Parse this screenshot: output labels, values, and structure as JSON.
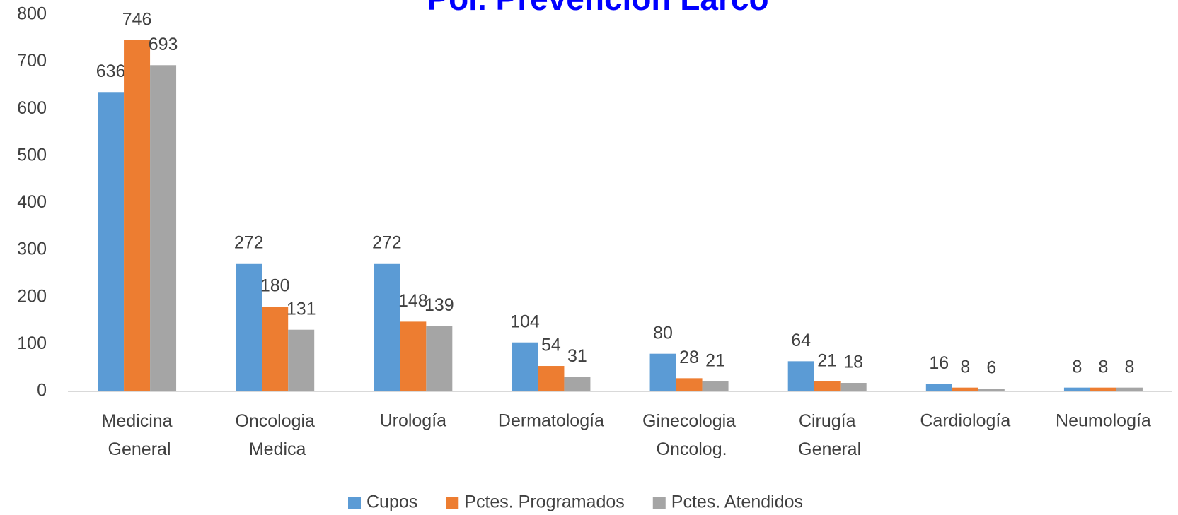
{
  "chart_data": {
    "type": "bar",
    "title": "Pol. Prevencion Larco",
    "categories": [
      "Medicina General",
      "Oncologia Medica",
      "Urología",
      "Dermatología",
      "Ginecologia Oncolog.",
      "Cirugía General",
      "Cardiología",
      "Neumología"
    ],
    "series": [
      {
        "name": "Cupos",
        "color": "#5b9bd5",
        "values": [
          636,
          272,
          272,
          104,
          80,
          64,
          16,
          8
        ]
      },
      {
        "name": "Pctes. Programados",
        "color": "#ed7d31",
        "values": [
          746,
          180,
          148,
          54,
          28,
          21,
          8,
          8
        ]
      },
      {
        "name": "Pctes. Atendidos",
        "color": "#a5a5a5",
        "values": [
          693,
          131,
          139,
          31,
          21,
          18,
          6,
          8
        ]
      }
    ],
    "ylim": [
      0,
      800
    ],
    "yticks": [
      0,
      100,
      200,
      300,
      400,
      500,
      600,
      700,
      800
    ],
    "grid": false,
    "legend": "bottom"
  }
}
